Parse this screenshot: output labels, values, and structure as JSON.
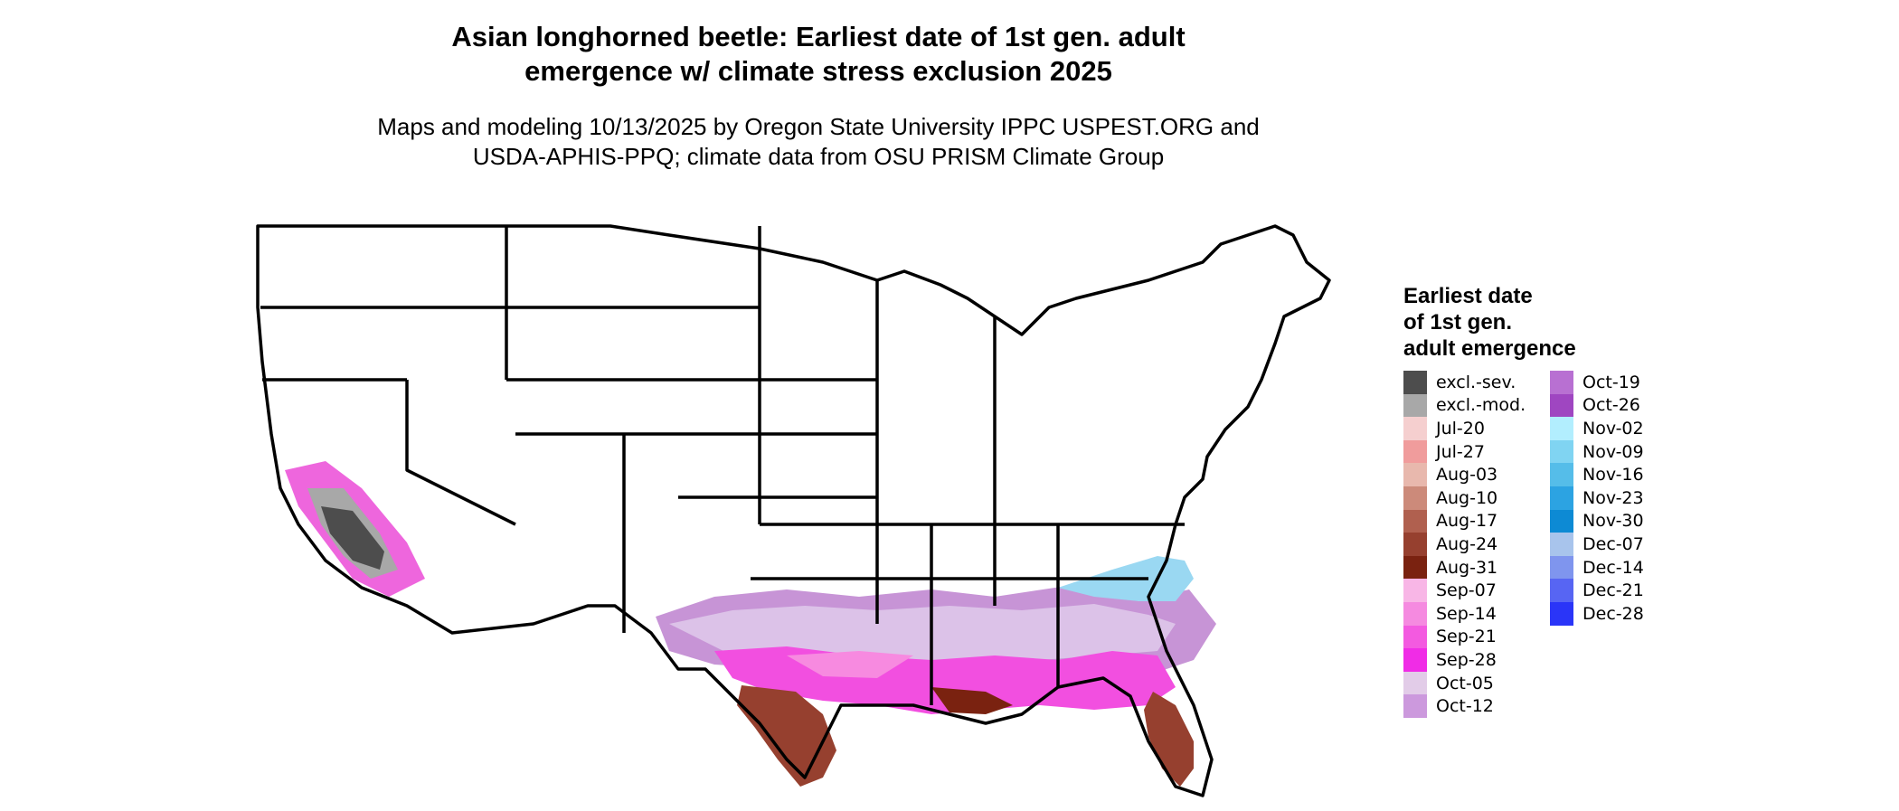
{
  "title": {
    "line1": "Asian longhorned beetle: Earliest date of 1st gen. adult",
    "line2": "emergence w/ climate stress exclusion 2025"
  },
  "subtitle": {
    "line1": "Maps and modeling 10/13/2025 by Oregon State University IPPC USPEST.ORG and",
    "line2": "USDA-APHIS-PPQ; climate data from OSU PRISM Climate Group"
  },
  "legend": {
    "title_line1": "Earliest date",
    "title_line2": "of 1st gen.",
    "title_line3": "adult emergence",
    "column1": [
      {
        "label": "excl.-sev.",
        "color": "#4d4d4d"
      },
      {
        "label": "excl.-mod.",
        "color": "#a8a8a8"
      },
      {
        "label": "Jul-20",
        "color": "#f5cfcf"
      },
      {
        "label": "Jul-27",
        "color": "#f09c9c"
      },
      {
        "label": "Aug-03",
        "color": "#e8b8ad"
      },
      {
        "label": "Aug-10",
        "color": "#cc8a7a"
      },
      {
        "label": "Aug-17",
        "color": "#b0604f"
      },
      {
        "label": "Aug-24",
        "color": "#96402f"
      },
      {
        "label": "Aug-31",
        "color": "#7a2210"
      },
      {
        "label": "Sep-07",
        "color": "#f8b6e6"
      },
      {
        "label": "Sep-14",
        "color": "#f58ae0"
      },
      {
        "label": "Sep-21",
        "color": "#f35ae0"
      },
      {
        "label": "Sep-28",
        "color": "#f02ce6"
      },
      {
        "label": "Oct-05",
        "color": "#e2cce8"
      },
      {
        "label": "Oct-12",
        "color": "#cc99dd"
      }
    ],
    "column2": [
      {
        "label": "Oct-19",
        "color": "#b870d2"
      },
      {
        "label": "Oct-26",
        "color": "#9f46c1"
      },
      {
        "label": "Nov-02",
        "color": "#b2eefe"
      },
      {
        "label": "Nov-09",
        "color": "#80d4f2"
      },
      {
        "label": "Nov-16",
        "color": "#55bde9"
      },
      {
        "label": "Nov-23",
        "color": "#2ca3e2"
      },
      {
        "label": "Nov-30",
        "color": "#0d8ad4"
      },
      {
        "label": "Dec-07",
        "color": "#a8c4ec"
      },
      {
        "label": "Dec-14",
        "color": "#7f95ee"
      },
      {
        "label": "Dec-21",
        "color": "#5765f3"
      },
      {
        "label": "Dec-28",
        "color": "#2a35f8"
      }
    ]
  }
}
